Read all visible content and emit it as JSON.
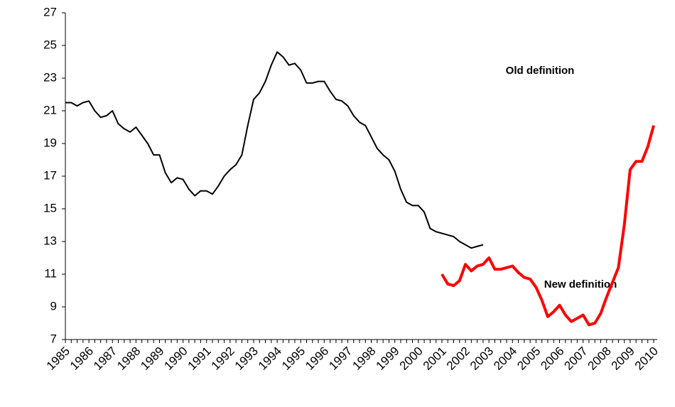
{
  "chart_data": {
    "type": "line",
    "annotations": [
      "Old definition",
      "New definition"
    ],
    "categories": [
      "1985",
      null,
      null,
      null,
      "1986",
      null,
      null,
      null,
      "1987",
      null,
      null,
      null,
      "1988",
      null,
      null,
      null,
      "1989",
      null,
      null,
      null,
      "1990",
      null,
      null,
      null,
      "1991",
      null,
      null,
      null,
      "1992",
      null,
      null,
      null,
      "1993",
      null,
      null,
      null,
      "1994",
      null,
      null,
      null,
      "1995",
      null,
      null,
      null,
      "1996",
      null,
      null,
      null,
      "1997",
      null,
      null,
      null,
      "1998",
      null,
      null,
      null,
      "1999",
      null,
      null,
      null,
      "2000",
      null,
      null,
      null,
      "2001",
      null,
      null,
      null,
      "2002",
      null,
      null,
      null,
      "2003",
      null,
      null,
      null,
      "2004",
      null,
      null,
      null,
      "2005",
      null,
      null,
      null,
      "2006",
      null,
      null,
      null,
      "2007",
      null,
      null,
      null,
      "2008",
      null,
      null,
      null,
      "2009",
      null,
      null,
      null,
      "2010"
    ],
    "series": [
      {
        "name": "Old definition",
        "color": "#000000",
        "width": 2,
        "values": [
          21.5,
          21.5,
          21.3,
          21.5,
          21.6,
          21.0,
          20.6,
          20.7,
          21.0,
          20.2,
          19.9,
          19.7,
          20.0,
          19.5,
          19.0,
          18.3,
          18.3,
          17.2,
          16.6,
          16.9,
          16.8,
          16.2,
          15.8,
          16.1,
          16.1,
          15.9,
          16.4,
          17.0,
          17.4,
          17.7,
          18.3,
          20.1,
          21.7,
          22.1,
          22.8,
          23.8,
          24.6,
          24.3,
          23.8,
          23.9,
          23.5,
          22.7,
          22.7,
          22.8,
          22.8,
          22.2,
          21.7,
          21.6,
          21.3,
          20.7,
          20.3,
          20.1,
          19.4,
          18.7,
          18.3,
          18.0,
          17.3,
          16.2,
          15.4,
          15.2,
          15.2,
          14.8,
          13.8,
          13.6,
          13.5,
          13.4,
          13.3,
          13.0,
          12.8,
          12.6,
          12.7,
          12.8,
          null,
          null,
          null,
          null,
          null,
          null,
          null,
          null,
          null,
          null,
          null,
          null,
          null,
          null,
          null,
          null,
          null,
          null,
          null,
          null,
          null,
          null,
          null,
          null,
          null,
          null,
          null,
          null,
          null
        ]
      },
      {
        "name": "New definition",
        "color": "#ff0000",
        "width": 4,
        "values": [
          null,
          null,
          null,
          null,
          null,
          null,
          null,
          null,
          null,
          null,
          null,
          null,
          null,
          null,
          null,
          null,
          null,
          null,
          null,
          null,
          null,
          null,
          null,
          null,
          null,
          null,
          null,
          null,
          null,
          null,
          null,
          null,
          null,
          null,
          null,
          null,
          null,
          null,
          null,
          null,
          null,
          null,
          null,
          null,
          null,
          null,
          null,
          null,
          null,
          null,
          null,
          null,
          null,
          null,
          null,
          null,
          null,
          null,
          null,
          null,
          null,
          null,
          null,
          null,
          11.0,
          10.4,
          10.3,
          10.6,
          11.6,
          11.2,
          11.5,
          11.6,
          12.0,
          11.3,
          11.3,
          11.4,
          11.5,
          11.1,
          10.8,
          10.7,
          10.2,
          9.4,
          8.4,
          8.7,
          9.1,
          8.5,
          8.1,
          8.3,
          8.5,
          7.9,
          8.0,
          8.6,
          9.6,
          10.5,
          11.4,
          14.0,
          17.4,
          17.9,
          17.9,
          18.8,
          20.1
        ]
      }
    ],
    "ylim": [
      7,
      27
    ],
    "yticks": [
      7,
      9,
      11,
      13,
      15,
      17,
      19,
      21,
      23,
      25,
      27
    ],
    "grid": false
  }
}
